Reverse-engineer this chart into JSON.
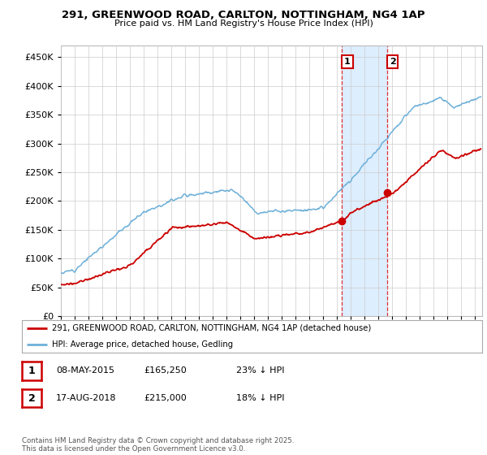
{
  "title1": "291, GREENWOOD ROAD, CARLTON, NOTTINGHAM, NG4 1AP",
  "title2": "Price paid vs. HM Land Registry's House Price Index (HPI)",
  "ylim": [
    0,
    470000
  ],
  "yticks": [
    0,
    50000,
    100000,
    150000,
    200000,
    250000,
    300000,
    350000,
    400000,
    450000
  ],
  "xlim_start": 1995.0,
  "xlim_end": 2025.5,
  "sale1_date": 2015.36,
  "sale1_price": 165250,
  "sale1_label": "1",
  "sale2_date": 2018.63,
  "sale2_price": 215000,
  "sale2_label": "2",
  "hpi_color": "#6eb0d8",
  "price_color": "#cc0000",
  "highlight_color": "#ddeeff",
  "legend_border_color": "#aaaaaa",
  "legend_text1": "291, GREENWOOD ROAD, CARLTON, NOTTINGHAM, NG4 1AP (detached house)",
  "legend_text2": "HPI: Average price, detached house, Gedling",
  "table_row1": [
    "1",
    "08-MAY-2015",
    "£165,250",
    "23% ↓ HPI"
  ],
  "table_row2": [
    "2",
    "17-AUG-2018",
    "£215,000",
    "18% ↓ HPI"
  ],
  "footnote": "Contains HM Land Registry data © Crown copyright and database right 2025.\nThis data is licensed under the Open Government Licence v3.0.",
  "background_color": "#ffffff",
  "grid_color": "#cccccc"
}
